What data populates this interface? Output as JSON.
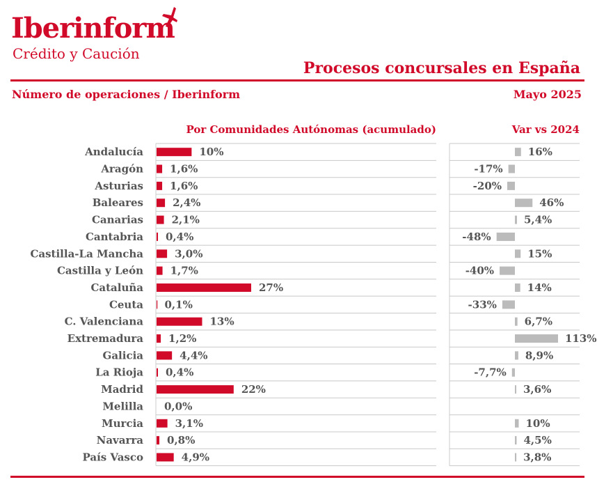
{
  "header": {
    "brand": "Iberinform",
    "brand_sub": "Crédito y Caución",
    "title": "Procesos concursales en España",
    "subtitle_left": "Número de operaciones / Iberinform",
    "subtitle_right": "Mayo 2025"
  },
  "colors": {
    "accent": "#d10a2a",
    "share_bar": "#d10a2a",
    "var_bar": "#bbbbbb",
    "label": "#555555"
  },
  "chart_data": [
    {
      "type": "bar",
      "orientation": "horizontal",
      "title": "Por Comunidades Autónomas (acumulado)",
      "unit": "%",
      "categories": [
        "Andalucía",
        "Aragón",
        "Asturias",
        "Baleares",
        "Canarias",
        "Cantabria",
        "Castilla-La Mancha",
        "Castilla y León",
        "Cataluña",
        "Ceuta",
        "C. Valenciana",
        "Extremadura",
        "Galicia",
        "La Rioja",
        "Madrid",
        "Melilla",
        "Murcia",
        "Navarra",
        "País Vasco"
      ],
      "values": [
        10,
        1.6,
        1.6,
        2.4,
        2.1,
        0.4,
        3.0,
        1.7,
        27,
        0.1,
        13,
        1.2,
        4.4,
        0.4,
        22,
        0.0,
        3.1,
        0.8,
        4.9
      ],
      "labels": [
        "10%",
        "1,6%",
        "1,6%",
        "2,4%",
        "2,1%",
        "0,4%",
        "3,0%",
        "1,7%",
        "27%",
        "0,1%",
        "13%",
        "1,2%",
        "4,4%",
        "0,4%",
        "22%",
        "0,0%",
        "3,1%",
        "0,8%",
        "4,9%"
      ],
      "xlim": [
        0,
        27
      ]
    },
    {
      "type": "bar",
      "orientation": "horizontal",
      "title": "Var vs 2024",
      "unit": "%",
      "categories": [
        "Andalucía",
        "Aragón",
        "Asturias",
        "Baleares",
        "Canarias",
        "Cantabria",
        "Castilla-La Mancha",
        "Castilla y León",
        "Cataluña",
        "Ceuta",
        "C. Valenciana",
        "Extremadura",
        "Galicia",
        "La Rioja",
        "Madrid",
        "Melilla",
        "Murcia",
        "Navarra",
        "País Vasco"
      ],
      "values": [
        16,
        -17,
        -20,
        46,
        5.4,
        -48,
        15,
        -40,
        14,
        -33,
        6.7,
        113,
        8.9,
        -7.7,
        3.6,
        null,
        10,
        4.5,
        3.8
      ],
      "labels": [
        "16%",
        "-17%",
        "-20%",
        "46%",
        "5,4%",
        "-48%",
        "15%",
        "-40%",
        "14%",
        "-33%",
        "6,7%",
        "113%",
        "8,9%",
        "-7,7%",
        "3,6%",
        "",
        "10%",
        "4,5%",
        "3,8%"
      ],
      "xlim": [
        -48,
        113
      ]
    }
  ]
}
